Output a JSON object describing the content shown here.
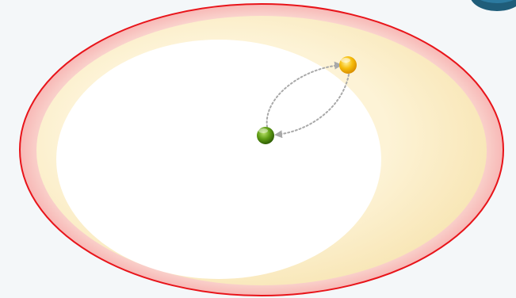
{
  "diagram": {
    "type": "nested-ellipses-with-nodes",
    "colors": {
      "background": "#f4f7f9",
      "outer_ring_fill": "#f8c3c0",
      "outer_ring_stroke": "#e8141a",
      "middle_zone_fill": "#fbefcc",
      "inner_zone_fill": "#ffffff",
      "corner_badge": "#1f5d7a",
      "node_green": "#5a9a12",
      "node_yellow": "#f3b600",
      "connector": "#a9a9a9"
    },
    "nodes": [
      {
        "id": "green-node",
        "color_name": "green"
      },
      {
        "id": "yellow-node",
        "color_name": "yellow"
      }
    ],
    "connectors": [
      {
        "from": "green-node",
        "to": "yellow-node",
        "style": "dotted-curved-arrow"
      },
      {
        "from": "yellow-node",
        "to": "green-node",
        "style": "dotted-curved-arrow"
      }
    ],
    "corner_badge_icon": "circle-badge-icon"
  }
}
